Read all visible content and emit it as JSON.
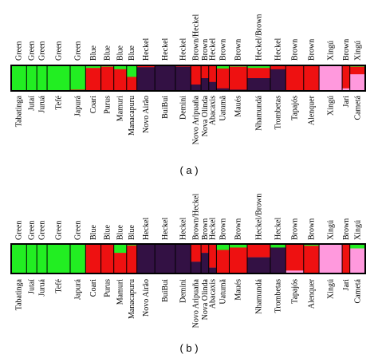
{
  "chart_data": [
    {
      "type": "bar",
      "stacked": true,
      "panel_label": "( a )",
      "top_labels": [
        "Green",
        "Green",
        "Green",
        "Green",
        "Green",
        "Blue",
        "Blue",
        "Blue",
        "Blue",
        "Heckel",
        "Heckel",
        "Heckel",
        "Brown/Heckel",
        "Brown",
        "Heckel",
        "Brown",
        "Brown",
        "Heckel/Brown",
        "Heckel",
        "Brown",
        "Brown",
        "Xingú",
        "Brown",
        "Xingú"
      ],
      "bottom_labels": [
        "Tabatinga",
        "Jutaí",
        "Juruá",
        "Tefé",
        "Japurá",
        "Coari",
        "Purus",
        "Mamuri",
        "Manacapuru",
        "Novo Airão",
        "BuiBui",
        "Demini",
        "Novo Aripuaña",
        "Nova Olinda",
        "Abacaxis",
        "Uatumã",
        "Maués",
        "Nhamundá",
        "Trombetas",
        "Tapajós",
        "Alenquer",
        "Xingú",
        "Jari",
        "Cametá"
      ],
      "clusters": [
        {
          "name": "Green",
          "color": "#22ee22"
        },
        {
          "name": "Red",
          "color": "#ee1111"
        },
        {
          "name": "Purple",
          "color": "#331144"
        },
        {
          "name": "Pink",
          "color": "#ff99dd"
        }
      ],
      "populations": [
        {
          "w": 6,
          "p": [
            0.98,
            0.02,
            0,
            0
          ]
        },
        {
          "w": 4,
          "p": [
            1,
            0,
            0,
            0
          ]
        },
        {
          "w": 4,
          "p": [
            1,
            0,
            0,
            0
          ]
        },
        {
          "w": 9,
          "p": [
            0.97,
            0.03,
            0,
            0
          ]
        },
        {
          "w": 6,
          "p": [
            0.95,
            0.05,
            0,
            0
          ]
        },
        {
          "w": 6,
          "p": [
            0.1,
            0.9,
            0,
            0
          ]
        },
        {
          "w": 5,
          "p": [
            0.05,
            0.93,
            0.02,
            0
          ]
        },
        {
          "w": 5,
          "p": [
            0.15,
            0.85,
            0,
            0
          ]
        },
        {
          "w": 4,
          "p": [
            0.45,
            0.55,
            0,
            0
          ]
        },
        {
          "w": 7,
          "p": [
            0.02,
            0.05,
            0.93,
            0
          ]
        },
        {
          "w": 8,
          "p": [
            0,
            0,
            1,
            0
          ]
        },
        {
          "w": 6,
          "p": [
            0,
            0.05,
            0.95,
            0
          ]
        },
        {
          "w": 4,
          "p": [
            0,
            0.75,
            0.25,
            0
          ]
        },
        {
          "w": 3,
          "p": [
            0,
            0.5,
            0.5,
            0
          ]
        },
        {
          "w": 3,
          "p": [
            0,
            0.65,
            0.35,
            0
          ]
        },
        {
          "w": 5,
          "p": [
            0.12,
            0.78,
            0.1,
            0
          ]
        },
        {
          "w": 7,
          "p": [
            0.05,
            0.9,
            0.05,
            0
          ]
        },
        {
          "w": 9,
          "p": [
            0.1,
            0.4,
            0.5,
            0
          ]
        },
        {
          "w": 6,
          "p": [
            0,
            0.15,
            0.85,
            0
          ]
        },
        {
          "w": 7,
          "p": [
            0.03,
            0.95,
            0.02,
            0
          ]
        },
        {
          "w": 6,
          "p": [
            0,
            0.98,
            0.02,
            0
          ]
        },
        {
          "w": 9,
          "p": [
            0,
            0,
            0,
            1
          ]
        },
        {
          "w": 3,
          "p": [
            0,
            0.9,
            0,
            0.1
          ]
        },
        {
          "w": 6,
          "p": [
            0.05,
            0.3,
            0,
            0.65
          ]
        }
      ]
    },
    {
      "type": "bar",
      "stacked": true,
      "panel_label": "( b )",
      "top_labels": [
        "Green",
        "Green",
        "Green",
        "Green",
        "Green",
        "Blue",
        "Blue",
        "Blue",
        "Blue",
        "Heckel",
        "Heckel",
        "Heckel",
        "Brown/Heckel",
        "Brown",
        "Heckel",
        "Brown",
        "Brown",
        "Heckel/Brown",
        "Heckel",
        "Brown",
        "Brown",
        "Xingú",
        "Brown",
        "Xingú"
      ],
      "bottom_labels": [
        "Tabatinga",
        "Jutaí",
        "Juruá",
        "Tefé",
        "Japurá",
        "Coari",
        "Purus",
        "Mamuri",
        "Manacapuru",
        "Novo Airão",
        "BuiBui",
        "Demini",
        "Novo Aripuaña",
        "Nova Olinda",
        "Abacaxis",
        "Uatumã",
        "Maués",
        "Nhamundá",
        "Trombetas",
        "Tapajós",
        "Alenquer",
        "Xingú",
        "Jari",
        "Cametá"
      ],
      "clusters": [
        {
          "name": "Green",
          "color": "#22ee22"
        },
        {
          "name": "Red",
          "color": "#ee1111"
        },
        {
          "name": "Purple",
          "color": "#331144"
        },
        {
          "name": "Pink",
          "color": "#ff99dd"
        }
      ],
      "populations": [
        {
          "w": 6,
          "p": [
            1,
            0,
            0,
            0
          ]
        },
        {
          "w": 4,
          "p": [
            1,
            0,
            0,
            0
          ]
        },
        {
          "w": 4,
          "p": [
            1,
            0,
            0,
            0
          ]
        },
        {
          "w": 9,
          "p": [
            1,
            0,
            0,
            0
          ]
        },
        {
          "w": 6,
          "p": [
            1,
            0,
            0,
            0
          ]
        },
        {
          "w": 6,
          "p": [
            0,
            1,
            0,
            0
          ]
        },
        {
          "w": 5,
          "p": [
            0,
            1,
            0,
            0
          ]
        },
        {
          "w": 5,
          "p": [
            0.3,
            0.7,
            0,
            0
          ]
        },
        {
          "w": 4,
          "p": [
            0.05,
            0.95,
            0,
            0
          ]
        },
        {
          "w": 7,
          "p": [
            0,
            0,
            1,
            0
          ]
        },
        {
          "w": 8,
          "p": [
            0,
            0,
            1,
            0
          ]
        },
        {
          "w": 6,
          "p": [
            0,
            0,
            1,
            0
          ]
        },
        {
          "w": 4,
          "p": [
            0,
            0.6,
            0.4,
            0
          ]
        },
        {
          "w": 3,
          "p": [
            0,
            0.3,
            0.7,
            0
          ]
        },
        {
          "w": 3,
          "p": [
            0,
            0.8,
            0.2,
            0
          ]
        },
        {
          "w": 5,
          "p": [
            0.2,
            0.8,
            0,
            0
          ]
        },
        {
          "w": 7,
          "p": [
            0.12,
            0.88,
            0,
            0
          ]
        },
        {
          "w": 9,
          "p": [
            0,
            0.45,
            0.55,
            0
          ]
        },
        {
          "w": 6,
          "p": [
            0.12,
            0,
            0.88,
            0
          ]
        },
        {
          "w": 7,
          "p": [
            0,
            0.9,
            0,
            0.1
          ]
        },
        {
          "w": 6,
          "p": [
            0.06,
            0.94,
            0,
            0
          ]
        },
        {
          "w": 9,
          "p": [
            0,
            0,
            0,
            1
          ]
        },
        {
          "w": 3,
          "p": [
            0,
            1,
            0,
            0
          ]
        },
        {
          "w": 6,
          "p": [
            0.15,
            0,
            0,
            0.85
          ]
        }
      ]
    }
  ]
}
